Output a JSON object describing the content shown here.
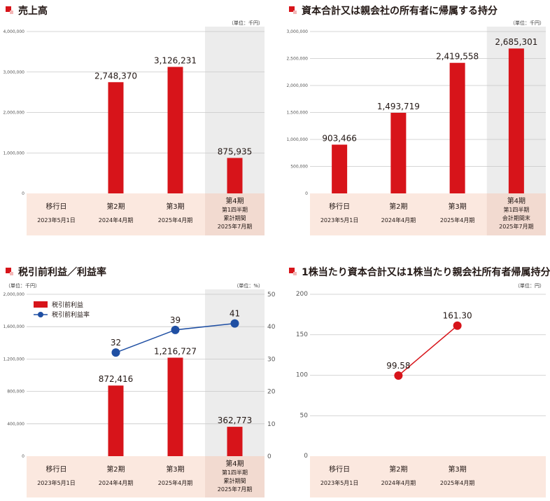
{
  "colors": {
    "bar": "#d7141a",
    "line": "#1f4fa3",
    "axis_bg": "#fbe8df",
    "highlight_bg": "#ececec",
    "grid": "#c8c8c8",
    "title_marker": "#d7141a"
  },
  "chart_data": [
    {
      "type": "bar",
      "title": "売上高",
      "unit": "（単位：千円）",
      "categories": [
        {
          "label": "移行日",
          "date": "2023年5月1日"
        },
        {
          "label": "第2期",
          "date": "2024年4月期"
        },
        {
          "label": "第3期",
          "date": "2025年4月期"
        },
        {
          "label": "第4期",
          "sub": [
            "第1四半期",
            "累計期間"
          ],
          "date": "2025年7月期"
        }
      ],
      "values": [
        null,
        2748370,
        3126231,
        875935
      ],
      "value_labels": [
        "",
        "2,748,370",
        "3,126,231",
        "875,935"
      ],
      "ylim": [
        0,
        4000000
      ],
      "yticks": [
        "0",
        "1,000,000",
        "2,000,000",
        "3,000,000",
        "4,000,000"
      ],
      "highlight_last": true
    },
    {
      "type": "bar",
      "title": "資本合計又は親会社の所有者に帰属する持分",
      "unit": "（単位：千円）",
      "categories": [
        {
          "label": "移行日",
          "date": "2023年5月1日"
        },
        {
          "label": "第2期",
          "date": "2024年4月期"
        },
        {
          "label": "第3期",
          "date": "2025年4月期"
        },
        {
          "label": "第4期",
          "sub": [
            "第1四半期",
            "会計期間末"
          ],
          "date": "2025年7月期"
        }
      ],
      "values": [
        903466,
        1493719,
        2419558,
        2685301
      ],
      "value_labels": [
        "903,466",
        "1,493,719",
        "2,419,558",
        "2,685,301"
      ],
      "ylim": [
        0,
        3000000
      ],
      "yticks": [
        "0",
        "500,000",
        "1,000,000",
        "1,500,000",
        "2,000,000",
        "2,500,000",
        "3,000,000"
      ],
      "highlight_last": true
    },
    {
      "type": "bar+line",
      "title": "税引前利益／利益率",
      "unit_left": "（単位：千円）",
      "unit_right": "（単位：%）",
      "categories": [
        {
          "label": "移行日",
          "date": "2023年5月1日"
        },
        {
          "label": "第2期",
          "date": "2024年4月期"
        },
        {
          "label": "第3期",
          "date": "2025年4月期"
        },
        {
          "label": "第4期",
          "sub": [
            "第1四半期",
            "累計期間"
          ],
          "date": "2025年7月期"
        }
      ],
      "series": [
        {
          "name": "税引前利益",
          "kind": "bar",
          "values": [
            null,
            872416,
            1216727,
            362773
          ],
          "value_labels": [
            "",
            "872,416",
            "1,216,727",
            "362,773"
          ]
        },
        {
          "name": "税引前利益率",
          "kind": "line",
          "values": [
            null,
            32,
            39,
            41
          ],
          "value_labels": [
            "",
            "32",
            "39",
            "41"
          ]
        }
      ],
      "ylim_left": [
        0,
        2000000
      ],
      "yticks_left": [
        "0",
        "400,000",
        "800,000",
        "1,200,000",
        "1,600,000",
        "2,000,000"
      ],
      "ylim_right": [
        0,
        50
      ],
      "yticks_right": [
        "0",
        "10",
        "20",
        "30",
        "40",
        "50"
      ],
      "highlight_last": true
    },
    {
      "type": "line",
      "title": "1株当たり資本合計又は1株当たり親会社所有者帰属持分",
      "unit": "（単位：円）",
      "categories": [
        {
          "label": "移行日",
          "date": "2023年5月1日"
        },
        {
          "label": "第2期",
          "date": "2024年4月期"
        },
        {
          "label": "第3期",
          "date": "2025年4月期"
        }
      ],
      "values": [
        null,
        99.58,
        161.3
      ],
      "value_labels": [
        "",
        "99.58",
        "161.30"
      ],
      "ylim": [
        0,
        200
      ],
      "yticks": [
        "0",
        "50",
        "100",
        "150",
        "200"
      ]
    }
  ]
}
